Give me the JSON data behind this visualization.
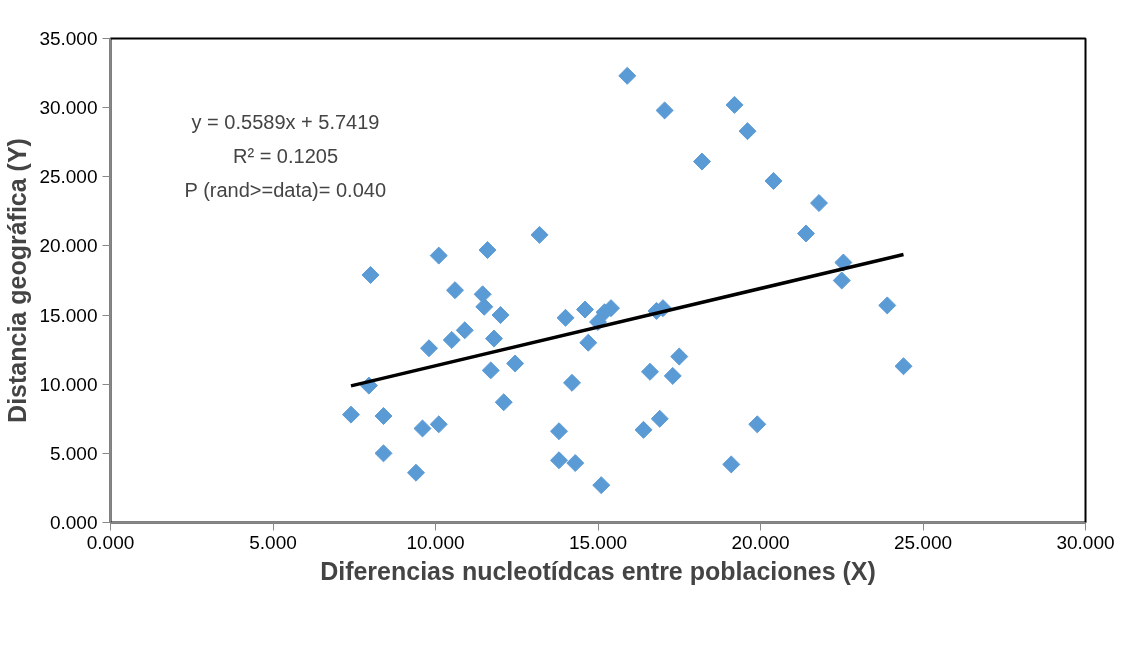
{
  "chart_data": {
    "type": "scatter",
    "xlabel": "Diferencias nucleotídcas entre poblaciones (X)",
    "ylabel": "Distancia geográfica (Y)",
    "annotations": [
      "y = 0.5589x + 5.7419",
      "R² = 0.1205",
      "P (rand>=data)= 0.040"
    ],
    "xlim": [
      0,
      30
    ],
    "ylim": [
      0,
      35
    ],
    "xticks": [
      {
        "value": 0,
        "label": "0.000"
      },
      {
        "value": 5,
        "label": "5.000"
      },
      {
        "value": 10,
        "label": "10.000"
      },
      {
        "value": 15,
        "label": "15.000"
      },
      {
        "value": 20,
        "label": "20.000"
      },
      {
        "value": 25,
        "label": "25.000"
      },
      {
        "value": 30,
        "label": "30.000"
      }
    ],
    "yticks": [
      {
        "value": 0,
        "label": "0.000"
      },
      {
        "value": 5,
        "label": "5.000"
      },
      {
        "value": 10,
        "label": "10.000"
      },
      {
        "value": 15,
        "label": "15.000"
      },
      {
        "value": 20,
        "label": "20.000"
      },
      {
        "value": 25,
        "label": "25.000"
      },
      {
        "value": 30,
        "label": "30.000"
      },
      {
        "value": 35,
        "label": "35.000"
      }
    ],
    "grid": false,
    "series": [
      {
        "marker": "diamond",
        "color": "#5b9bd5",
        "x": [
          7.4,
          7.95,
          8.0,
          8.4,
          8.4,
          9.4,
          9.6,
          9.8,
          10.1,
          10.1,
          10.6,
          10.5,
          10.9,
          11.45,
          11.5,
          11.6,
          11.7,
          11.8,
          12.0,
          12.1,
          12.45,
          13.2,
          13.8,
          13.8,
          14.0,
          14.2,
          14.3,
          14.6,
          14.7,
          15.0,
          15.1,
          15.2,
          15.4,
          15.9,
          16.4,
          16.6,
          16.8,
          16.9,
          17.0,
          17.05,
          17.3,
          17.5,
          18.2,
          19.1,
          19.2,
          19.6,
          19.9,
          20.4,
          21.4,
          21.8,
          22.55,
          22.5,
          23.9,
          24.4
        ],
        "values": [
          7.8,
          9.9,
          17.9,
          7.7,
          5.0,
          3.6,
          6.8,
          12.6,
          7.1,
          19.3,
          16.8,
          13.2,
          13.9,
          16.5,
          15.6,
          19.7,
          11.0,
          13.3,
          15.0,
          8.7,
          11.5,
          20.8,
          6.6,
          4.5,
          14.8,
          10.1,
          4.3,
          15.4,
          13.0,
          14.5,
          2.7,
          15.2,
          15.5,
          32.3,
          6.7,
          10.9,
          15.3,
          7.5,
          15.5,
          29.8,
          10.6,
          12.0,
          26.1,
          4.2,
          30.2,
          28.3,
          7.1,
          24.7,
          20.9,
          23.1,
          18.8,
          17.5,
          15.7,
          11.3
        ]
      },
      {
        "type": "line",
        "color": "#000000",
        "line_style": "solid",
        "x": [
          7.4,
          24.4
        ],
        "values": [
          9.88,
          19.38
        ]
      }
    ]
  }
}
